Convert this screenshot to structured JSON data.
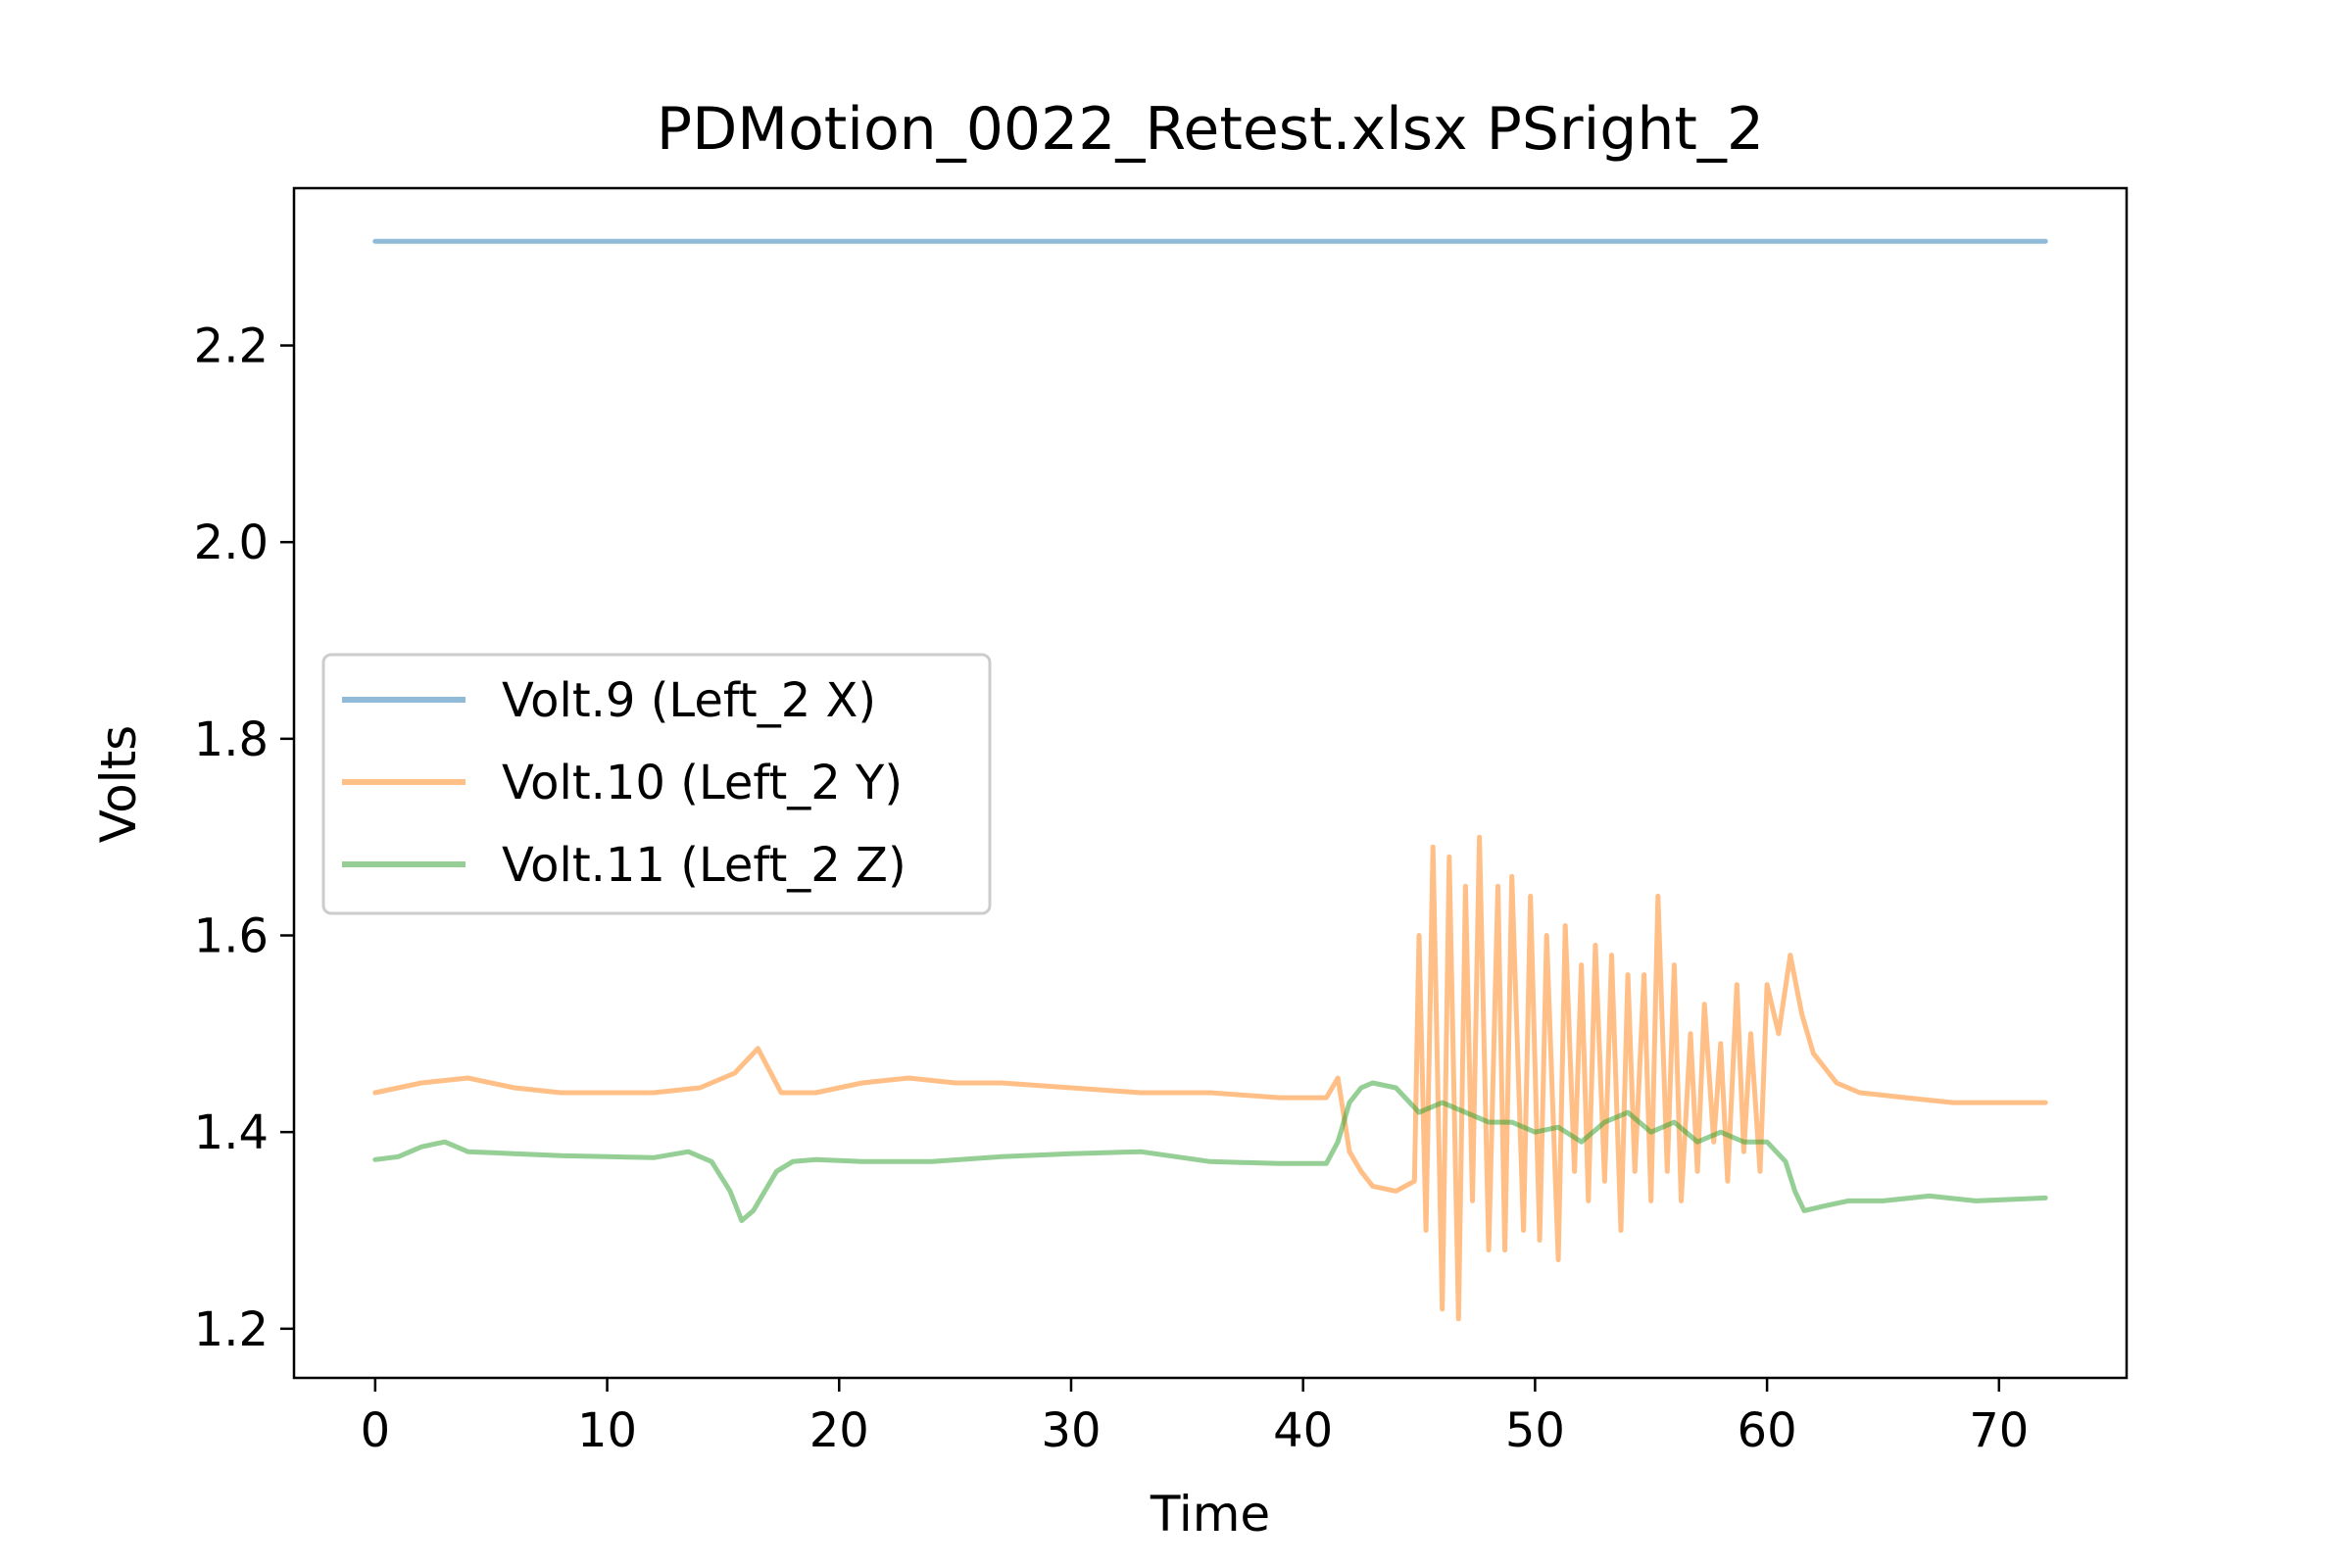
{
  "chart_data": {
    "type": "line",
    "title": "PDMotion_0022_Retest.xlsx PSright_2",
    "xlabel": "Time",
    "ylabel": "Volts",
    "xlim": [
      -3.5,
      75.5
    ],
    "ylim": [
      1.15,
      2.36
    ],
    "xticks": [
      0,
      10,
      20,
      30,
      40,
      50,
      60,
      70
    ],
    "yticks": [
      1.2,
      1.4,
      1.6,
      1.8,
      2.0,
      2.2
    ],
    "ytick_labels": [
      "1.2",
      "1.4",
      "1.6",
      "1.8",
      "2.0",
      "2.2"
    ],
    "grid": false,
    "legend_position": "center-left",
    "series": [
      {
        "name": "Volt.9 (Left_2 X)",
        "color": "#1f77b4",
        "x": [
          0,
          6,
          12,
          18,
          24,
          30,
          36,
          42,
          48,
          54,
          60,
          66,
          72
        ],
        "y": [
          2.306,
          2.306,
          2.306,
          2.306,
          2.306,
          2.306,
          2.306,
          2.306,
          2.306,
          2.306,
          2.306,
          2.306,
          2.306
        ]
      },
      {
        "name": "Volt.10 (Left_2 Y)",
        "color": "#ff7f0e",
        "x": [
          0,
          2,
          4,
          6,
          8,
          10,
          12,
          14,
          15.5,
          16.5,
          17.5,
          19,
          21,
          23,
          25,
          27,
          30,
          33,
          36,
          39,
          41,
          41.5,
          42,
          42.5,
          43,
          44,
          44.8,
          45,
          45.3,
          45.6,
          46,
          46.3,
          46.7,
          47,
          47.3,
          47.6,
          48,
          48.4,
          48.7,
          49,
          49.5,
          49.8,
          50.2,
          50.5,
          51,
          51.3,
          51.7,
          52,
          52.3,
          52.6,
          53,
          53.3,
          53.7,
          54,
          54.3,
          54.7,
          55,
          55.3,
          55.7,
          56,
          56.3,
          56.7,
          57,
          57.3,
          57.7,
          58,
          58.3,
          58.7,
          59,
          59.3,
          59.7,
          60,
          60.5,
          61,
          61.5,
          62,
          63,
          64,
          66,
          68,
          70,
          72
        ],
        "y": [
          1.44,
          1.45,
          1.455,
          1.445,
          1.44,
          1.44,
          1.44,
          1.445,
          1.46,
          1.485,
          1.44,
          1.44,
          1.45,
          1.455,
          1.45,
          1.45,
          1.445,
          1.44,
          1.44,
          1.435,
          1.435,
          1.455,
          1.38,
          1.36,
          1.345,
          1.34,
          1.35,
          1.6,
          1.3,
          1.69,
          1.22,
          1.68,
          1.21,
          1.65,
          1.33,
          1.7,
          1.28,
          1.65,
          1.28,
          1.66,
          1.3,
          1.64,
          1.29,
          1.6,
          1.27,
          1.61,
          1.36,
          1.57,
          1.33,
          1.59,
          1.35,
          1.58,
          1.3,
          1.56,
          1.36,
          1.56,
          1.33,
          1.64,
          1.36,
          1.57,
          1.33,
          1.5,
          1.36,
          1.53,
          1.39,
          1.49,
          1.35,
          1.55,
          1.38,
          1.5,
          1.36,
          1.55,
          1.5,
          1.58,
          1.52,
          1.48,
          1.45,
          1.44,
          1.435,
          1.43,
          1.43,
          1.43
        ]
      },
      {
        "name": "Volt.11 (Left_2 Z)",
        "color": "#2ca02c",
        "x": [
          0,
          1,
          2,
          3,
          4,
          6,
          8,
          10,
          12,
          13.5,
          14.5,
          15.3,
          15.8,
          16.3,
          16.8,
          17.3,
          18,
          19,
          21,
          24,
          27,
          30,
          33,
          36,
          39,
          41,
          41.5,
          42,
          42.5,
          43,
          44,
          45,
          46,
          47,
          48,
          49,
          50,
          51,
          52,
          53,
          54,
          55,
          56,
          57,
          58,
          59,
          60,
          60.8,
          61.2,
          61.6,
          62.5,
          63.5,
          65,
          67,
          69,
          72
        ],
        "y": [
          1.372,
          1.375,
          1.385,
          1.39,
          1.38,
          1.378,
          1.376,
          1.375,
          1.374,
          1.38,
          1.37,
          1.34,
          1.31,
          1.32,
          1.34,
          1.36,
          1.37,
          1.372,
          1.37,
          1.37,
          1.375,
          1.378,
          1.38,
          1.37,
          1.368,
          1.368,
          1.39,
          1.43,
          1.445,
          1.45,
          1.445,
          1.42,
          1.43,
          1.42,
          1.41,
          1.41,
          1.4,
          1.405,
          1.39,
          1.41,
          1.42,
          1.4,
          1.41,
          1.39,
          1.4,
          1.39,
          1.39,
          1.37,
          1.34,
          1.32,
          1.325,
          1.33,
          1.33,
          1.335,
          1.33,
          1.333
        ]
      }
    ]
  }
}
